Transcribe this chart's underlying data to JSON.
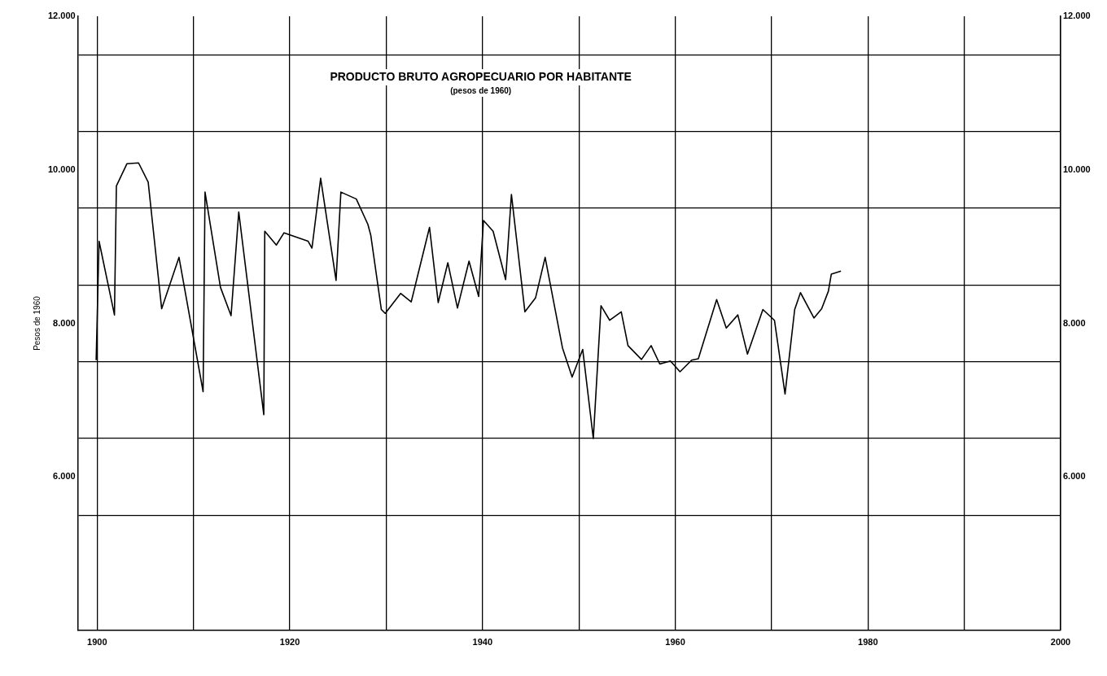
{
  "chart_data": {
    "type": "line",
    "title": "PRODUCTO BRUTO AGROPECUARIO POR HABITANTE",
    "subtitle": "(pesos de 1960)",
    "ylabel": "Pesos de 1960",
    "series": [
      {
        "color": "#000000",
        "x": [
          1899.9,
          1900.2,
          1901.8,
          1902.0,
          1903.1,
          1904.3,
          1905.3,
          1906.7,
          1908.5,
          1911.0,
          1911.2,
          1912.8,
          1913.9,
          1914.7,
          1917.3,
          1917.4,
          1918.6,
          1919.4,
          1921.9,
          1922.3,
          1923.2,
          1924.8,
          1925.3,
          1926.9,
          1928.1,
          1928.4,
          1929.5,
          1929.9,
          1931.5,
          1932.6,
          1934.5,
          1935.4,
          1936.4,
          1937.4,
          1938.6,
          1939.6,
          1940.1,
          1941.1,
          1942.4,
          1943.0,
          1944.4,
          1945.5,
          1946.5,
          1948.3,
          1949.3,
          1950.4,
          1951.5,
          1952.3,
          1953.2,
          1954.4,
          1955.1,
          1956.5,
          1957.5,
          1958.4,
          1959.5,
          1960.5,
          1961.7,
          1962.4,
          1964.3,
          1965.3,
          1966.5,
          1967.5,
          1969.1,
          1970.3,
          1971.4,
          1972.4,
          1973.0,
          1974.4,
          1975.2,
          1975.9,
          1976.2,
          1977.2
        ],
        "values": [
          7520,
          9070,
          8110,
          9790,
          10080,
          10090,
          9840,
          8190,
          8860,
          7110,
          9710,
          8470,
          8100,
          9450,
          6810,
          9200,
          9020,
          9180,
          9070,
          8980,
          9890,
          8560,
          9710,
          9620,
          9290,
          9150,
          8180,
          8130,
          8390,
          8280,
          9250,
          8270,
          8790,
          8200,
          8810,
          8350,
          9340,
          9200,
          8570,
          9680,
          8150,
          8330,
          8860,
          7680,
          7300,
          7660,
          6500,
          8230,
          8040,
          8150,
          7710,
          7530,
          7710,
          7470,
          7510,
          7370,
          7520,
          7540,
          8310,
          7940,
          8110,
          7600,
          8180,
          8040,
          7080,
          8180,
          8400,
          8070,
          8190,
          8420,
          8640,
          8680
        ]
      }
    ],
    "xlim": [
      1898,
      2000
    ],
    "xticks": [
      1900,
      {
        "value": 1910,
        "label": null
      },
      1920,
      {
        "value": 1930,
        "label": null
      },
      1940,
      {
        "value": 1950,
        "label": null
      },
      1960,
      {
        "value": 1970,
        "label": null
      },
      1980,
      {
        "value": 1990,
        "label": null
      },
      2000
    ],
    "ylim": [
      4000,
      12000
    ],
    "yticks": [
      {
        "value": 5500,
        "label": null
      },
      {
        "value": 6000,
        "label": "6.000"
      },
      {
        "value": 6500,
        "label": null
      },
      {
        "value": 7500,
        "label": null
      },
      {
        "value": 8000,
        "label": "8.000"
      },
      {
        "value": 8500,
        "label": null
      },
      {
        "value": 9500,
        "label": null
      },
      {
        "value": 10000,
        "label": "10.000"
      },
      {
        "value": 10500,
        "label": null
      },
      {
        "value": 11500,
        "label": null
      },
      {
        "value": 12000,
        "label": "12.000"
      }
    ],
    "y2lim": [
      4000,
      12000
    ],
    "y2ticks": [
      {
        "value": 6000,
        "label": "6.000"
      },
      {
        "value": 8000,
        "label": "8.000"
      },
      {
        "value": 10000,
        "label": "10.000"
      },
      {
        "value": 12000,
        "label": "12.000"
      }
    ],
    "grid": true,
    "legend": false,
    "marker": "none",
    "line_style": "solid"
  }
}
